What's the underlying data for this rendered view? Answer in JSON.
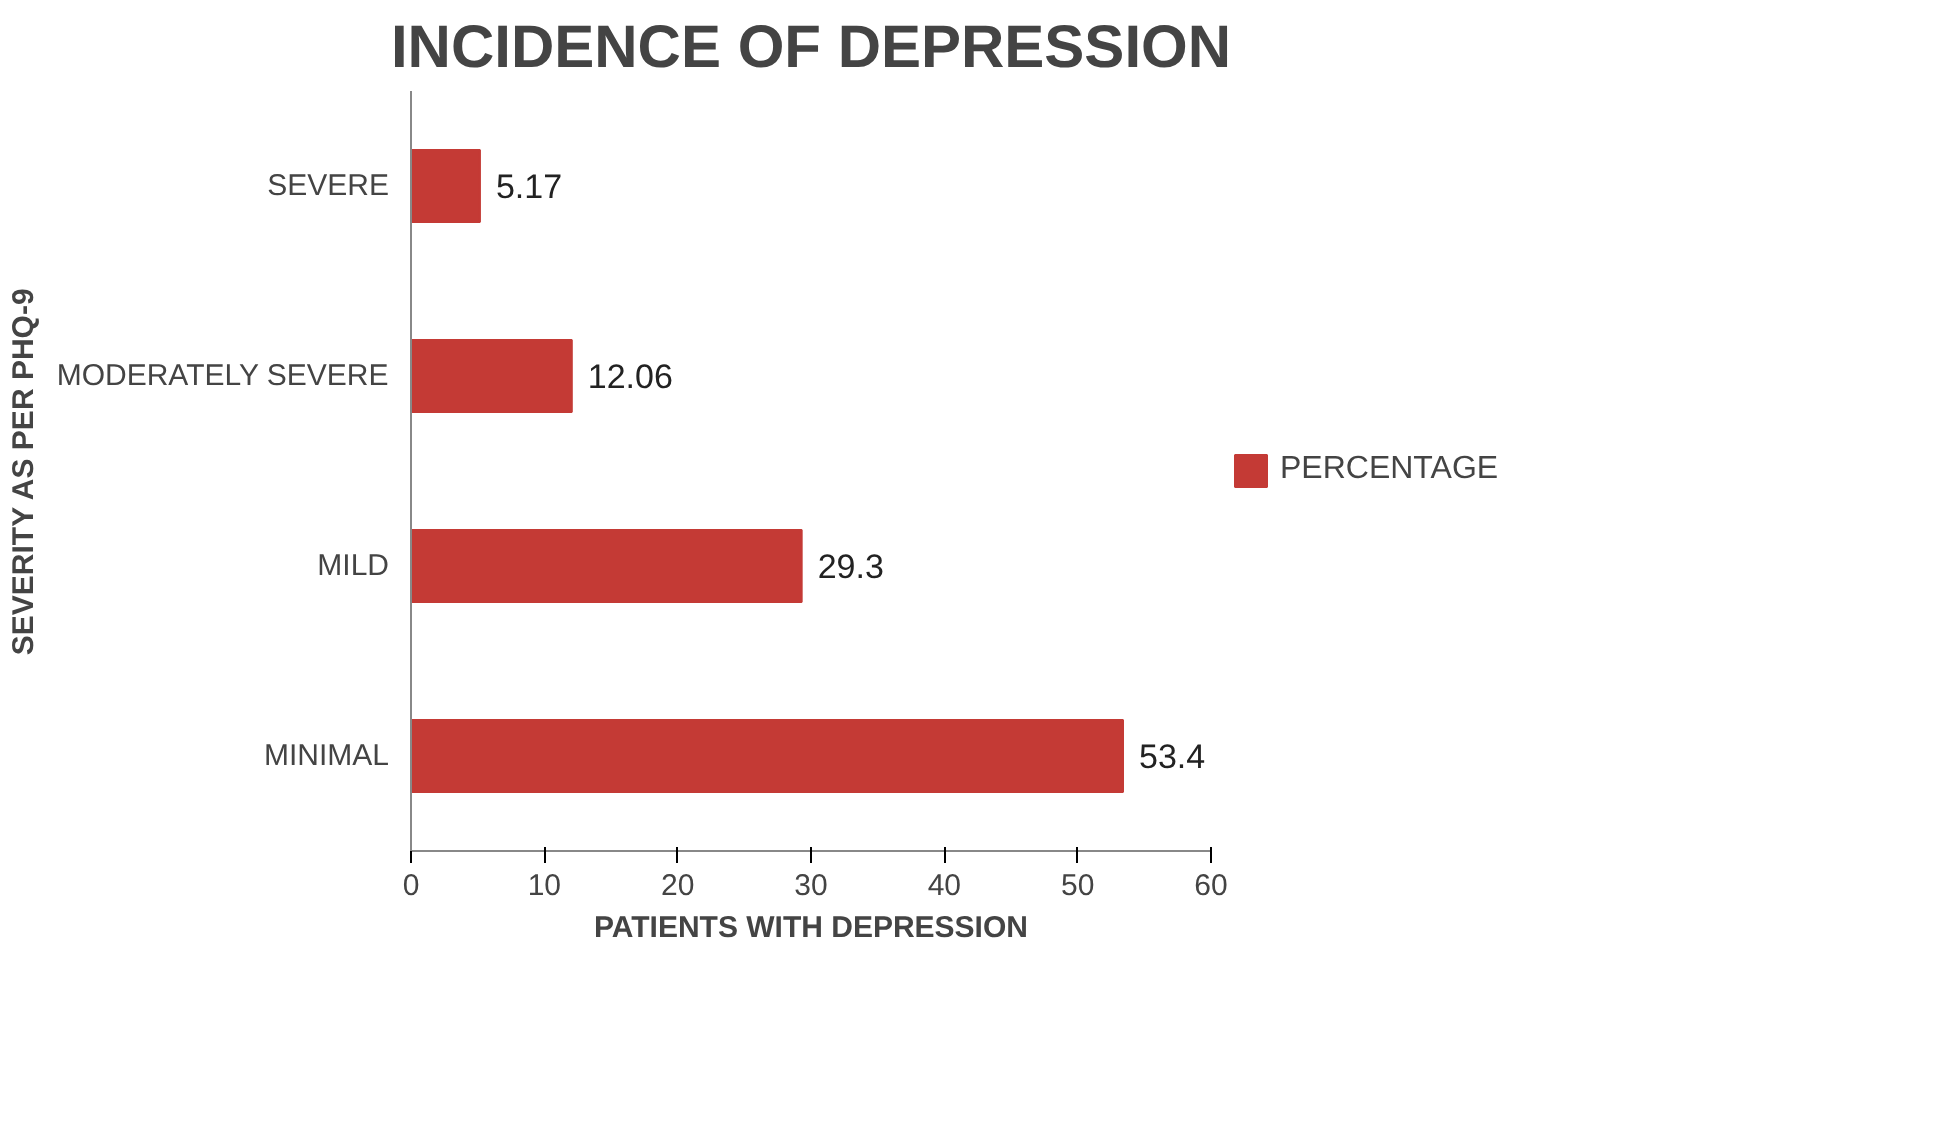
{
  "chart_data": {
    "type": "bar",
    "orientation": "horizontal",
    "title": "INCIDENCE OF DEPRESSION",
    "xlabel": "PATIENTS WITH DEPRESSION",
    "ylabel": "SEVERITY AS PER PHQ-9",
    "categories": [
      "SEVERE",
      "MODERATELY SEVERE",
      "MILD",
      "MINIMAL"
    ],
    "series": [
      {
        "name": "PERCENTAGE",
        "color": "#c43a35",
        "values": [
          5.17,
          12.06,
          29.3,
          53.4
        ]
      }
    ],
    "xlim": [
      0,
      60
    ],
    "xticks": [
      0,
      10,
      20,
      30,
      40,
      50,
      60
    ],
    "grid": false,
    "legend": "right",
    "data_labels": true
  }
}
